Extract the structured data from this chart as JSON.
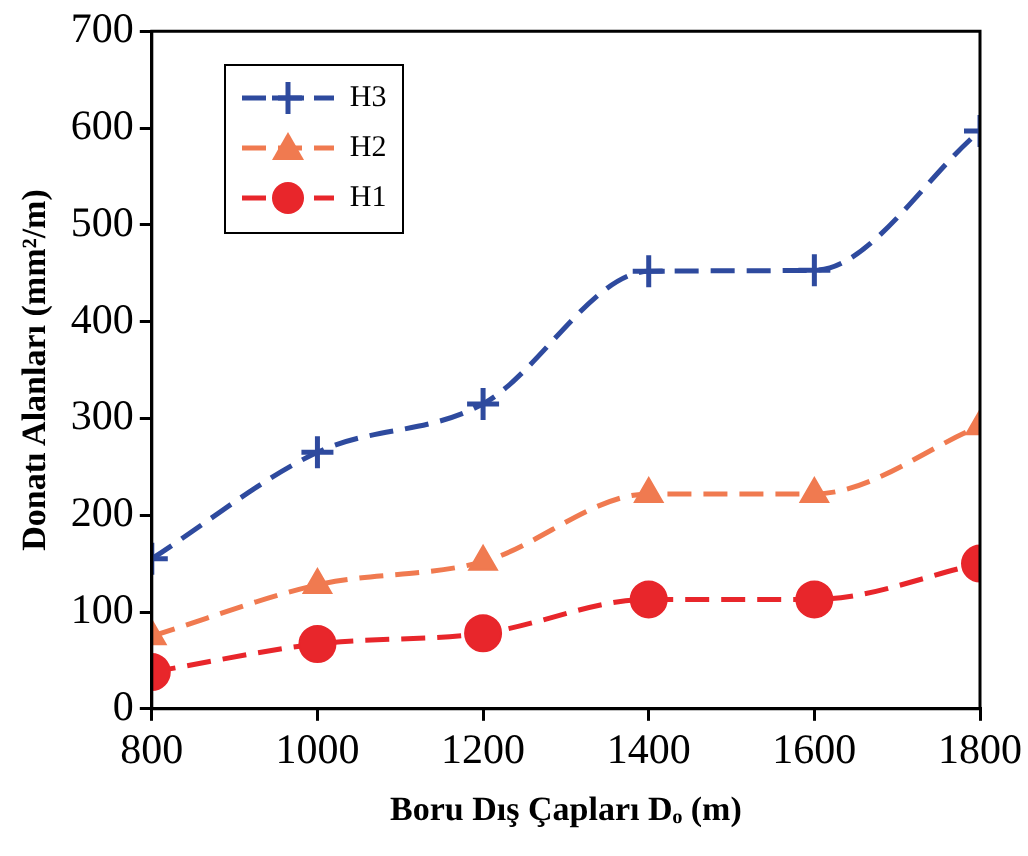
{
  "chart_data": {
    "type": "line",
    "xlabel": "Boru Dış Çapları Dₒ (m)",
    "ylabel": "Donatı Alanları (mm²/m)",
    "x": [
      800,
      1000,
      1200,
      1400,
      1600,
      1800
    ],
    "series": [
      {
        "name": "H3",
        "color": "#2e4a9e",
        "marker": "cross",
        "values": [
          155,
          265,
          315,
          452,
          453,
          597
        ]
      },
      {
        "name": "H2",
        "color": "#f07a50",
        "marker": "triangle",
        "values": [
          75,
          128,
          152,
          222,
          222,
          292
        ]
      },
      {
        "name": "H1",
        "color": "#e8262b",
        "marker": "circle",
        "values": [
          38,
          67,
          78,
          113,
          113,
          150
        ]
      }
    ],
    "xlim": [
      800,
      1800
    ],
    "xticks": [
      800,
      1000,
      1200,
      1400,
      1600,
      1800
    ],
    "ylim": [
      0,
      700
    ],
    "yticks": [
      0,
      100,
      200,
      300,
      400,
      500,
      600,
      700
    ],
    "grid": false,
    "legend": "top left",
    "line_style": "dashed"
  }
}
